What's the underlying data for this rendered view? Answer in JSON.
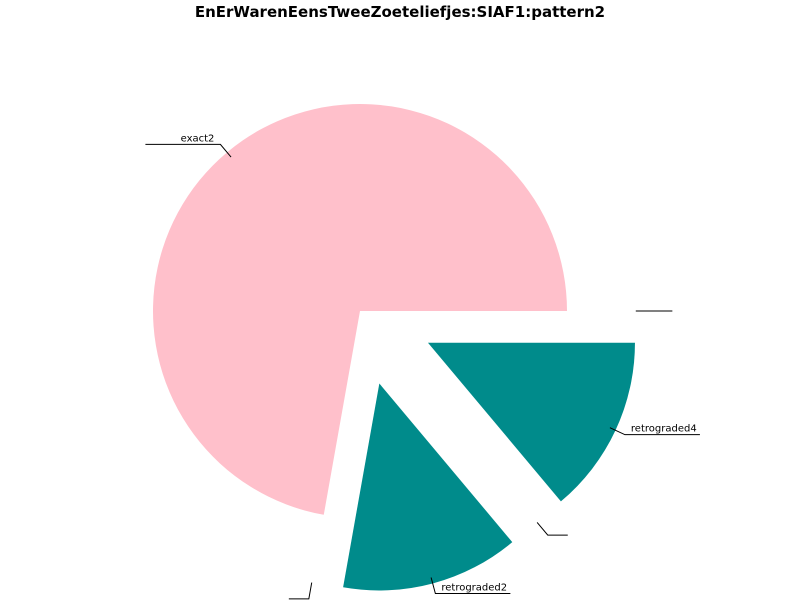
{
  "chart_data": {
    "type": "pie",
    "title": "EnErWarenEensTweeZoeteliefjes:SIAF1:pattern2",
    "slices": [
      {
        "label": "exact2",
        "value": 0.722,
        "color": "#ffc0cb",
        "exploded": false
      },
      {
        "label": "",
        "value": 0.0,
        "color": "#008b8b",
        "exploded": true
      },
      {
        "label": "retrograded2",
        "value": 0.139,
        "color": "#008b8b",
        "exploded": true
      },
      {
        "label": "",
        "value": 0.0,
        "color": "#008b8b",
        "exploded": true
      },
      {
        "label": "retrograded4",
        "value": 0.139,
        "color": "#008b8b",
        "exploded": true
      },
      {
        "label": "",
        "value": 0.0,
        "color": "#008b8b",
        "exploded": true
      }
    ],
    "start_angle_deg": 0,
    "direction": "counterclockwise",
    "legend": "none",
    "grid": false
  }
}
